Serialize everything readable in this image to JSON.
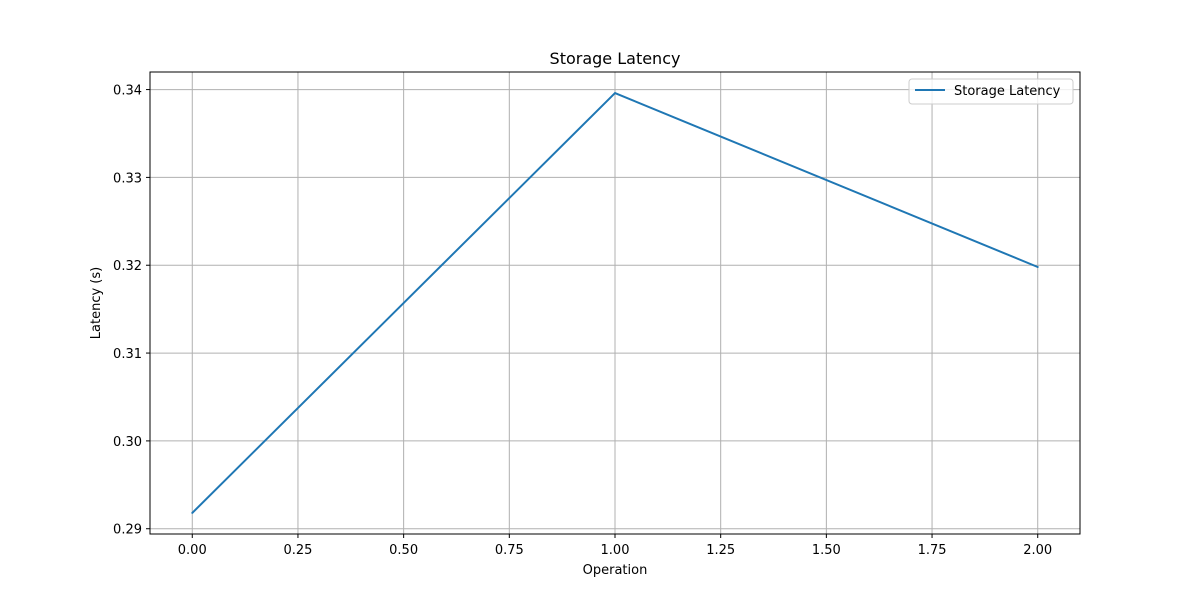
{
  "chart_data": {
    "type": "line",
    "title": "Storage Latency",
    "xlabel": "Operation",
    "ylabel": "Latency (s)",
    "x": [
      0,
      1,
      2
    ],
    "series": [
      {
        "name": "Storage Latency",
        "values": [
          0.2918,
          0.3396,
          0.3198
        ],
        "color": "#1f77b4"
      }
    ],
    "xlim": [
      -0.1,
      2.1
    ],
    "ylim": [
      0.2894,
      0.342
    ],
    "xticks": [
      0.0,
      0.25,
      0.5,
      0.75,
      1.0,
      1.25,
      1.5,
      1.75,
      2.0
    ],
    "xtick_labels": [
      "0.00",
      "0.25",
      "0.50",
      "0.75",
      "1.00",
      "1.25",
      "1.50",
      "1.75",
      "2.00"
    ],
    "yticks": [
      0.29,
      0.3,
      0.31,
      0.32,
      0.33,
      0.34
    ],
    "ytick_labels": [
      "0.29",
      "0.30",
      "0.31",
      "0.32",
      "0.33",
      "0.34"
    ],
    "grid": true,
    "legend_position": "top-right",
    "grid_color": "#b0b0b0"
  }
}
